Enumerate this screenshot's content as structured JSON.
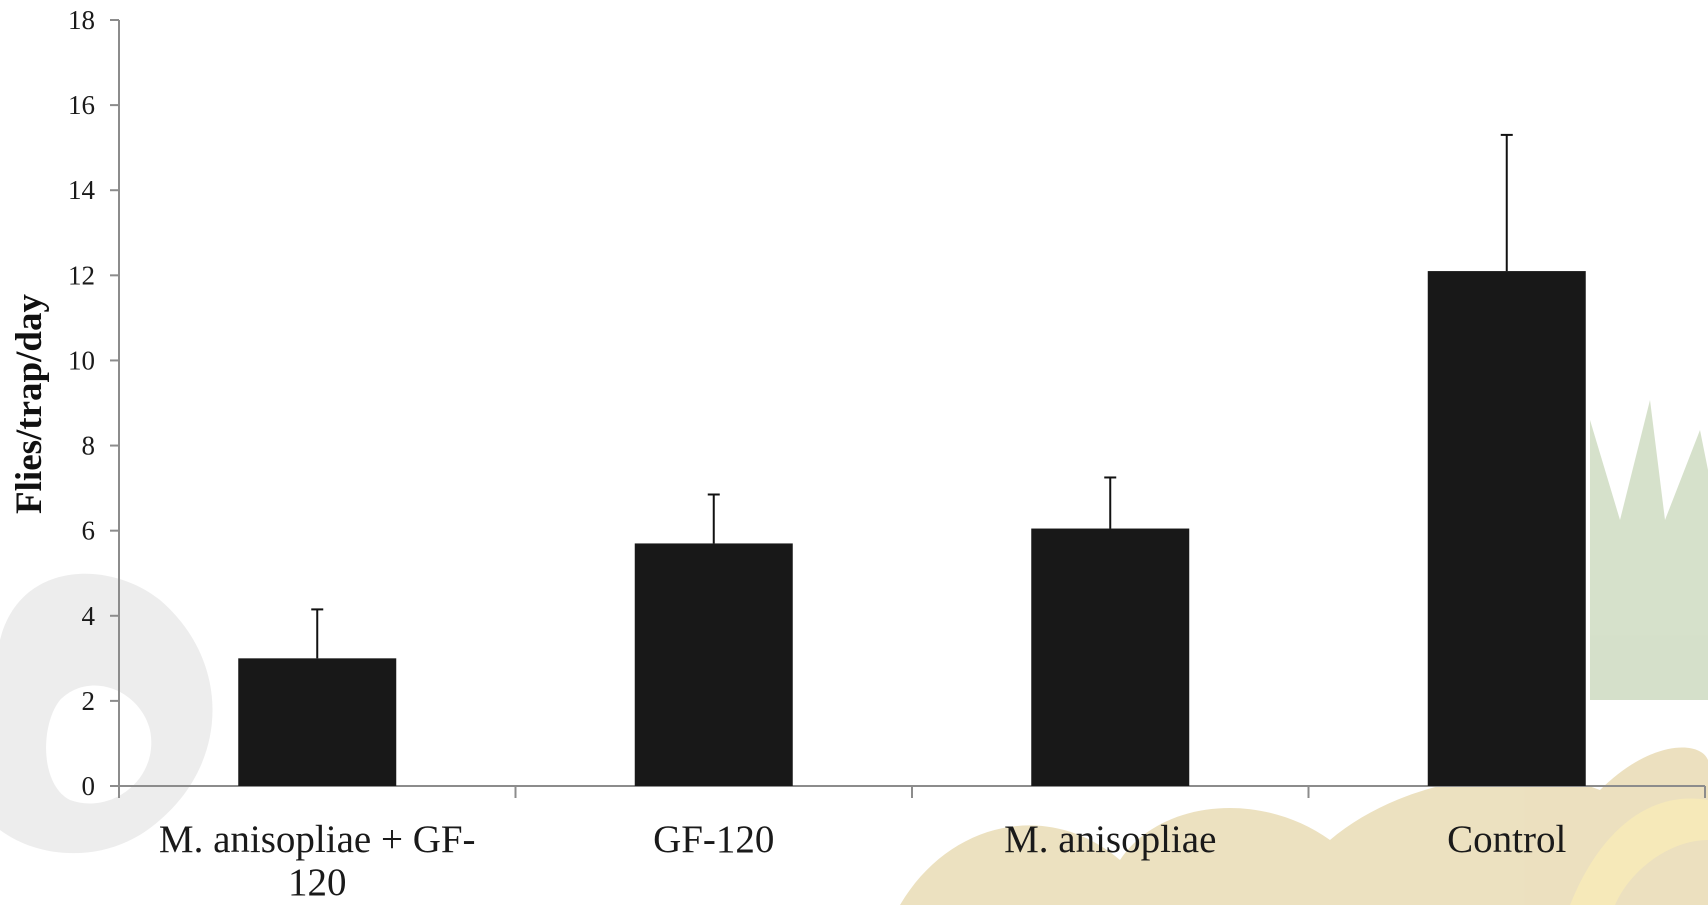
{
  "chart_data": {
    "type": "bar",
    "title": "",
    "xlabel": "",
    "ylabel": "Flies/trap/day",
    "categories": [
      "M. anisopliae + GF-120",
      "GF-120",
      "M. anisopliae",
      "Control"
    ],
    "category_lines": [
      [
        "M. anisopliae + GF-",
        "120"
      ],
      [
        "GF-120"
      ],
      [
        "M. anisopliae"
      ],
      [
        "Control"
      ]
    ],
    "values": [
      3.0,
      5.7,
      6.05,
      12.1
    ],
    "error_upper": [
      1.15,
      1.15,
      1.2,
      3.2
    ],
    "ylim": [
      0,
      18
    ],
    "yticks": [
      0,
      2,
      4,
      6,
      8,
      10,
      12,
      14,
      16,
      18
    ],
    "grid": false,
    "bar_color": "#181818",
    "axis_color": "#8c8c8c"
  }
}
